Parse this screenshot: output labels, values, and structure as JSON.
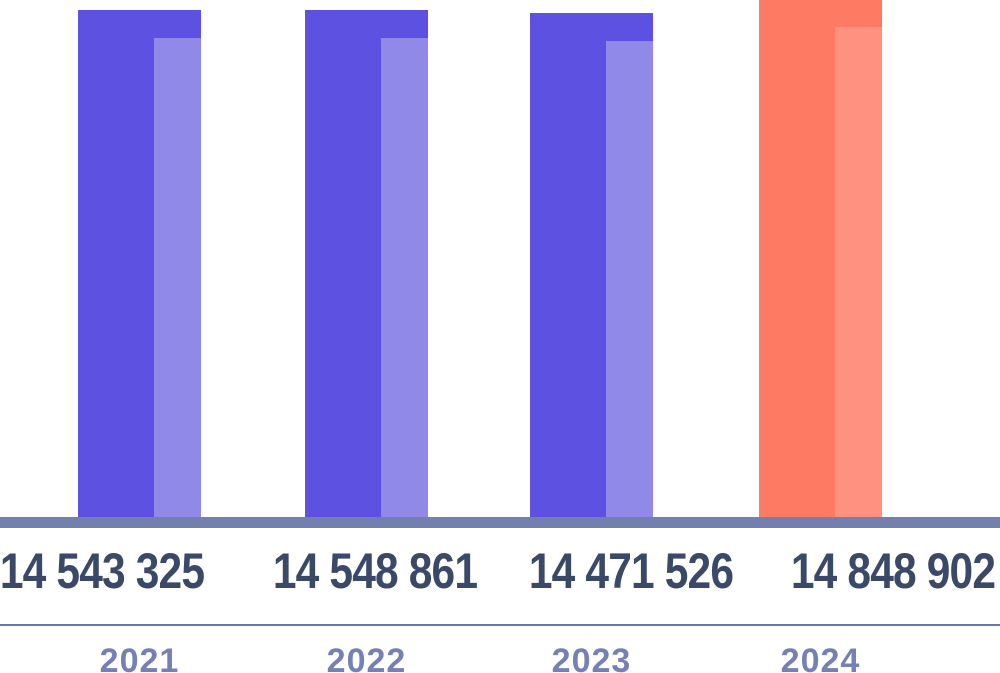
{
  "chart_data": {
    "type": "bar",
    "title": "",
    "xlabel": "",
    "ylabel": "",
    "categories": [
      "2021",
      "2022",
      "2023",
      "2024"
    ],
    "values": [
      14543325,
      14548861,
      14471526,
      14848902
    ],
    "ylim": [
      0,
      14829000
    ],
    "grid": false,
    "legend": "none",
    "note_topmost_bar_clipped": "2024 bar exceeds top of frame",
    "bars": [
      {
        "year": "2021",
        "value": 14543325,
        "value_label": "14 543 325",
        "color": "#5C51E0",
        "highlight_color": "#9089E8"
      },
      {
        "year": "2022",
        "value": 14548861,
        "value_label": "14 548 861",
        "color": "#5C51E0",
        "highlight_color": "#9089E8"
      },
      {
        "year": "2023",
        "value": 14471526,
        "value_label": "14 471 526",
        "color": "#5C51E0",
        "highlight_color": "#9089E8"
      },
      {
        "year": "2024",
        "value": 14848902,
        "value_label": "14 848 902",
        "color": "#FF7A62",
        "highlight_color": "#FF9181"
      }
    ],
    "colors": {
      "axis_line": "#7380AE",
      "divider_line": "#6976A9",
      "value_text": "#3A4967",
      "year_text": "#7580B5",
      "background": "#FFFFFF"
    }
  }
}
